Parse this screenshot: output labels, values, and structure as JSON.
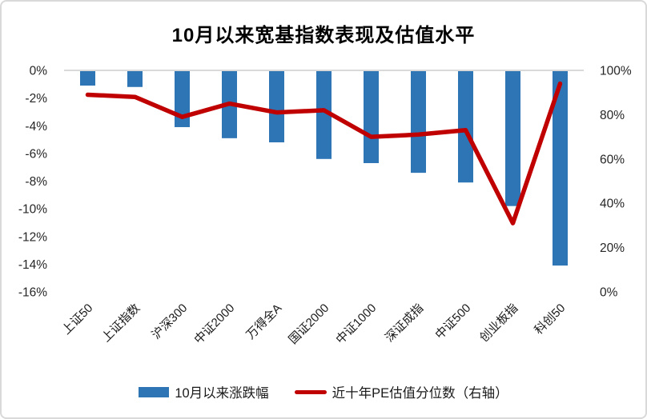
{
  "title": "10月以来宽基指数表现及估值水平",
  "colors": {
    "bar": "#2E75B6",
    "line": "#C00000",
    "gridline": "#D9D9D9",
    "axis_text": "#262626",
    "border": "#D9D9D9"
  },
  "legend": {
    "bar_label": "10月以来涨跌幅",
    "line_label": "近十年PE估值分位数（右轴）"
  },
  "chart_data": {
    "type": "bar",
    "subtype": "combo bar + line, dual axis",
    "title": "10月以来宽基指数表现及估值水平",
    "categories": [
      "上证50",
      "上证指数",
      "沪深300",
      "中证2000",
      "万得全A",
      "国证2000",
      "中证1000",
      "深证成指",
      "中证500",
      "创业板指",
      "科创50"
    ],
    "series": [
      {
        "name": "10月以来涨跌幅",
        "type": "bar",
        "axis": "left",
        "unit": "%",
        "values": [
          -1.1,
          -1.2,
          -4.1,
          -4.9,
          -5.2,
          -6.4,
          -6.7,
          -7.4,
          -8.1,
          -9.8,
          -14.1
        ]
      },
      {
        "name": "近十年PE估值分位数（右轴）",
        "type": "line",
        "axis": "right",
        "unit": "%",
        "values": [
          89,
          88,
          79,
          85,
          81,
          82,
          70,
          71,
          73,
          31,
          94
        ]
      }
    ],
    "left_axis": {
      "min": -16,
      "max": 0,
      "tick_step": 2,
      "labels": [
        "0%",
        "-2%",
        "-4%",
        "-6%",
        "-8%",
        "-10%",
        "-12%",
        "-14%",
        "-16%"
      ]
    },
    "right_axis": {
      "min": 0,
      "max": 100,
      "tick_step": 20,
      "labels": [
        "100%",
        "80%",
        "60%",
        "40%",
        "20%",
        "0%"
      ]
    },
    "grid": "single horizontal gridline at 0% (top)",
    "legend_position": "bottom"
  }
}
